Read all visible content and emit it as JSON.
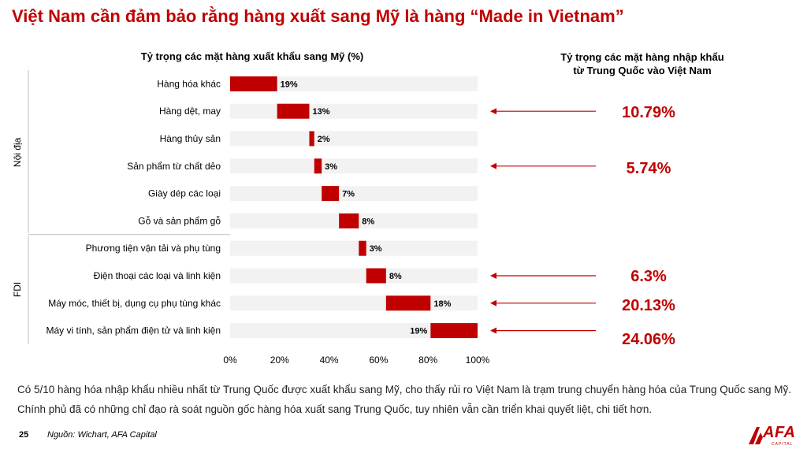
{
  "title": "Việt Nam cần đảm bảo rằng hàng xuất sang Mỹ là hàng “Made in Vietnam”",
  "right_title_line1": "Tỷ trọng các mặt hàng nhập khẩu",
  "right_title_line2": "từ Trung Quốc vào Việt Nam",
  "import_shares": [
    {
      "category": "Hàng dệt, may",
      "value": "10.79%"
    },
    {
      "category": "Sản phẩm từ chất dẻo",
      "value": "5.74%"
    },
    {
      "category": "Điện thoại các loại và linh kiện",
      "value": "6.3%"
    },
    {
      "category": "Máy móc, thiết bị, dụng cụ phụ tùng khác",
      "value": "20.13%"
    },
    {
      "category": "Máy vi tính, sản phẩm điện tử và linh kiện",
      "value": "24.06%"
    }
  ],
  "description": "Có 5/10 hàng hóa nhập khẩu nhiều nhất từ Trung Quốc được xuất khẩu sang Mỹ, cho thấy rủi ro Việt Nam là trạm trung chuyển hàng hóa của Trung Quốc sang Mỹ. Chính phủ đã có những chỉ đạo rà soát nguồn gốc hàng hóa xuất sang Trung Quốc, tuy nhiên vẫn cần triển khai quyết liệt, chi tiết hơn.",
  "page_number": "25",
  "source": "Nguồn: Wichart, AFA Capital",
  "logo": {
    "text": "AFA",
    "sub": "CAPITAL"
  },
  "colors": {
    "accent": "#c00000",
    "track": "#f2f2f2",
    "text": "#000000"
  },
  "chart_data": {
    "type": "bar",
    "subtype": "waterfall",
    "title": "Tỷ trọng các mặt hàng xuất khẩu sang Mỹ (%)",
    "groups": [
      {
        "name": "Nội địa",
        "categories": [
          "Hàng hóa khác",
          "Hàng dệt, may",
          "Hàng thủy sản",
          "Sản phẩm từ chất dẻo",
          "Giày dép các loại",
          "Gỗ và sản phẩm gỗ"
        ]
      },
      {
        "name": "FDI",
        "categories": [
          "Phương tiện vận tải và phụ tùng",
          "Điện thoại các loại và linh kiện",
          "Máy móc, thiết bị, dụng cụ phụ tùng khác",
          "Máy vi tính, sản phẩm điện tử và linh kiện"
        ]
      }
    ],
    "categories": [
      "Hàng hóa khác",
      "Hàng dệt, may",
      "Hàng thủy sản",
      "Sản phẩm từ chất dẻo",
      "Giày dép các loại",
      "Gỗ và sản phẩm gỗ",
      "Phương tiện vận tải và phụ tùng",
      "Điện thoại các loại và linh kiện",
      "Máy móc, thiết bị, dụng cụ phụ tùng khác",
      "Máy vi tính, sản phẩm điện tử và linh kiện"
    ],
    "values": [
      19,
      13,
      2,
      3,
      7,
      8,
      3,
      8,
      18,
      19
    ],
    "labels": [
      "19%",
      "13%",
      "2%",
      "3%",
      "7%",
      "8%",
      "3%",
      "8%",
      "18%",
      "19%"
    ],
    "xticks": [
      "0%",
      "20%",
      "40%",
      "60%",
      "80%",
      "100%"
    ],
    "xlim": [
      0,
      100
    ],
    "color": "#c00000"
  }
}
